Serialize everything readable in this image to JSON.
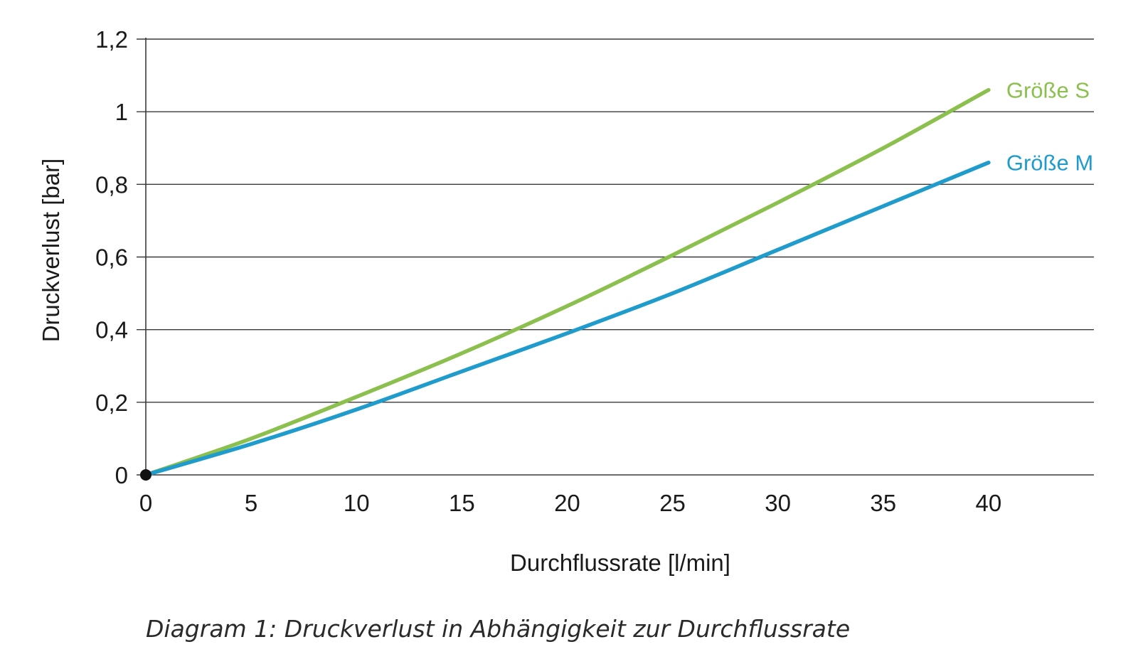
{
  "chart_data": {
    "type": "line",
    "xlabel": "Durchflussrate [l/min]",
    "ylabel": "Druckverlust [bar]",
    "xlim": [
      0,
      45
    ],
    "ylim": [
      0,
      1.2
    ],
    "x_ticks": [
      "0",
      "5",
      "10",
      "15",
      "20",
      "25",
      "30",
      "35",
      "40"
    ],
    "y_ticks": [
      "0",
      "0,2",
      "0,4",
      "0,6",
      "0,8",
      "1",
      "1,2"
    ],
    "grid": true,
    "legend": "end-of-line labels",
    "series": [
      {
        "name": "Größe S",
        "color": "#8cc04e",
        "x": [
          0,
          5,
          10,
          15,
          20,
          25,
          30,
          35,
          40
        ],
        "y": [
          0,
          0.1,
          0.215,
          0.335,
          0.465,
          0.605,
          0.75,
          0.9,
          1.06
        ]
      },
      {
        "name": "Größe M",
        "color": "#1f9ccc",
        "x": [
          0,
          5,
          10,
          15,
          20,
          25,
          30,
          35,
          40
        ],
        "y": [
          0,
          0.085,
          0.18,
          0.285,
          0.39,
          0.5,
          0.62,
          0.74,
          0.86
        ]
      }
    ],
    "origin_marker": true
  },
  "caption": "Diagram 1: Druckverlust in Abhängigkeit zur Durchflussrate"
}
